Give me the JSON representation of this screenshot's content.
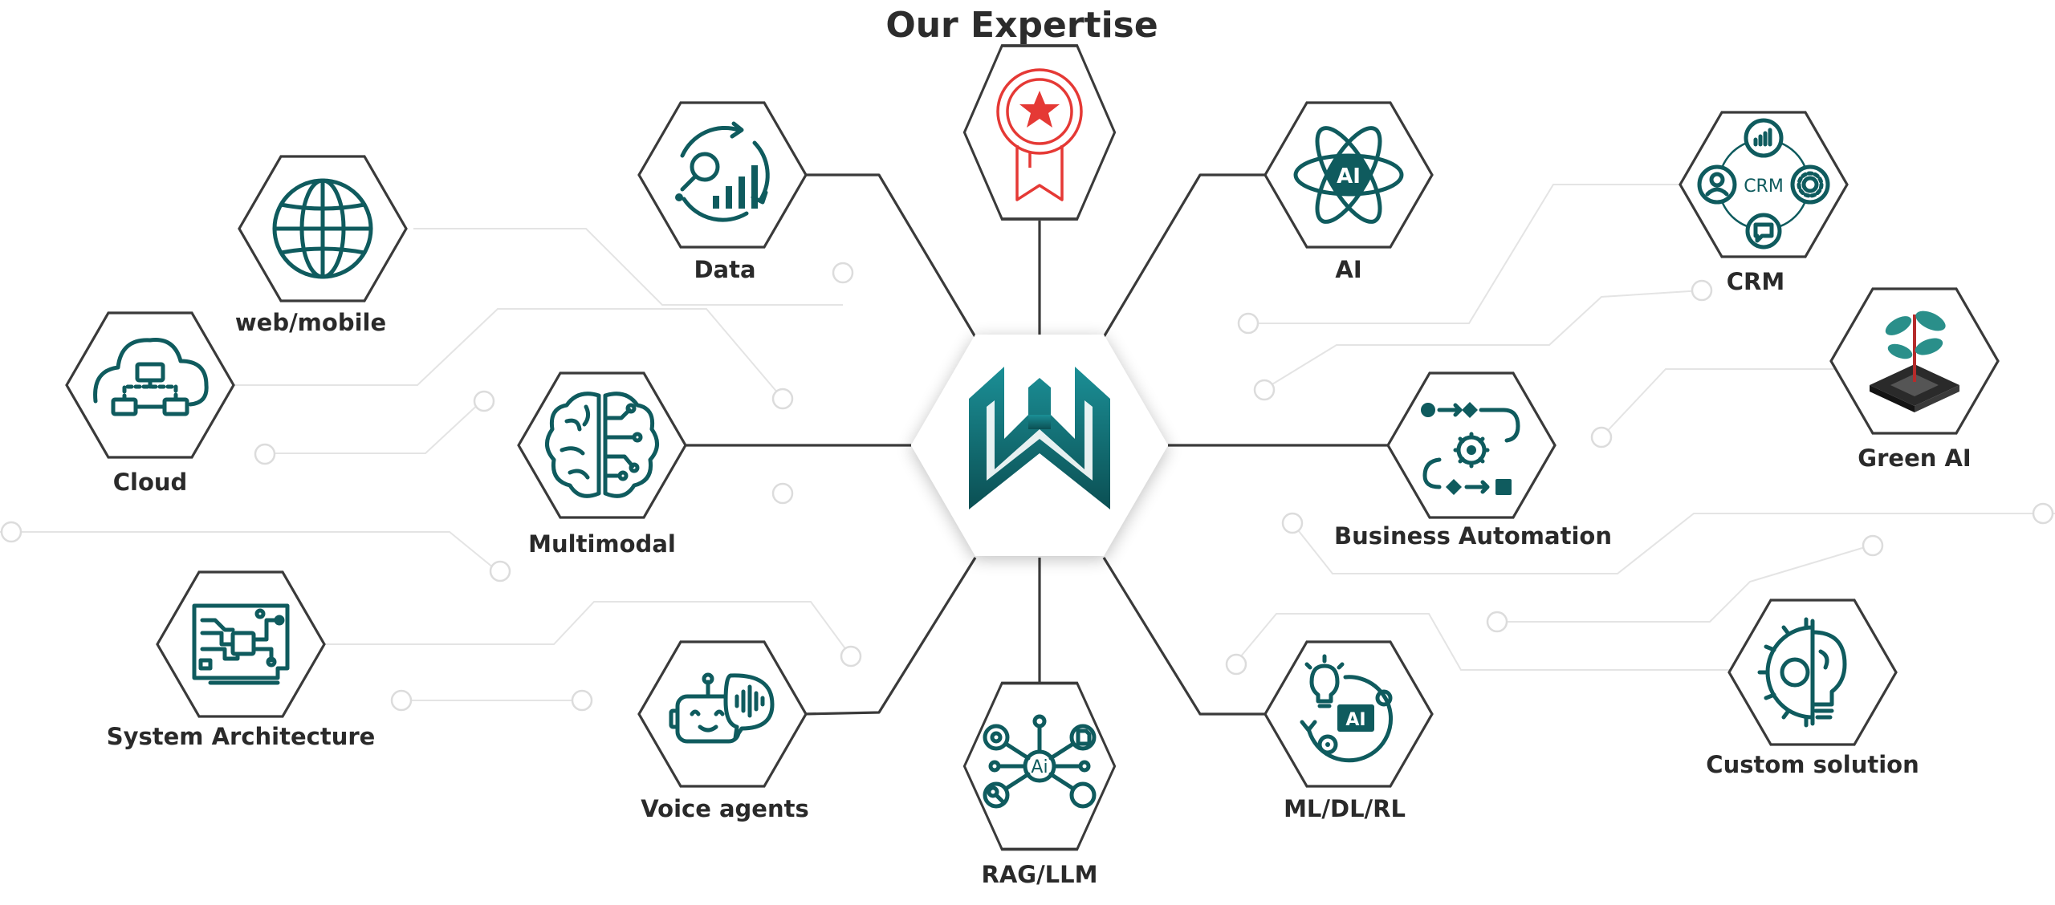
{
  "title": "Our Expertise",
  "center_logo": {
    "icon": "w-brand-logo-icon",
    "colors": [
      "#147a80",
      "#0d5a5e"
    ]
  },
  "nodes": [
    {
      "id": "web-mobile",
      "label": "web/mobile",
      "icon": "globe-icon"
    },
    {
      "id": "cloud",
      "label": "Cloud",
      "icon": "cloud-network-icon"
    },
    {
      "id": "system-architecture",
      "label": "System Architecture",
      "icon": "circuit-board-icon"
    },
    {
      "id": "data",
      "label": "Data",
      "icon": "data-analytics-icon"
    },
    {
      "id": "expertise-badge",
      "label": "",
      "icon": "award-ribbon-icon"
    },
    {
      "id": "ai",
      "label": "AI",
      "icon": "ai-atom-icon"
    },
    {
      "id": "crm",
      "label": "CRM",
      "icon": "crm-cycle-icon"
    },
    {
      "id": "green-ai",
      "label": "Green AI",
      "icon": "chip-sprout-icon"
    },
    {
      "id": "multimodal",
      "label": "Multimodal",
      "icon": "brain-circuit-icon"
    },
    {
      "id": "business-automation",
      "label": "Business Automation",
      "icon": "workflow-gear-icon"
    },
    {
      "id": "voice-agents",
      "label": "Voice agents",
      "icon": "voice-bot-icon"
    },
    {
      "id": "rag-llm",
      "label": "RAG/LLM",
      "icon": "ai-network-icon"
    },
    {
      "id": "ml-dl-rl",
      "label": "ML/DL/RL",
      "icon": "ai-lightbulb-gear-icon"
    },
    {
      "id": "custom-solution",
      "label": "Custom solution",
      "icon": "gear-lightbulb-icon"
    }
  ],
  "colors": {
    "accent": "#0f5b5e",
    "badge_red": "#e53935",
    "outline": "#3a3a3a"
  }
}
